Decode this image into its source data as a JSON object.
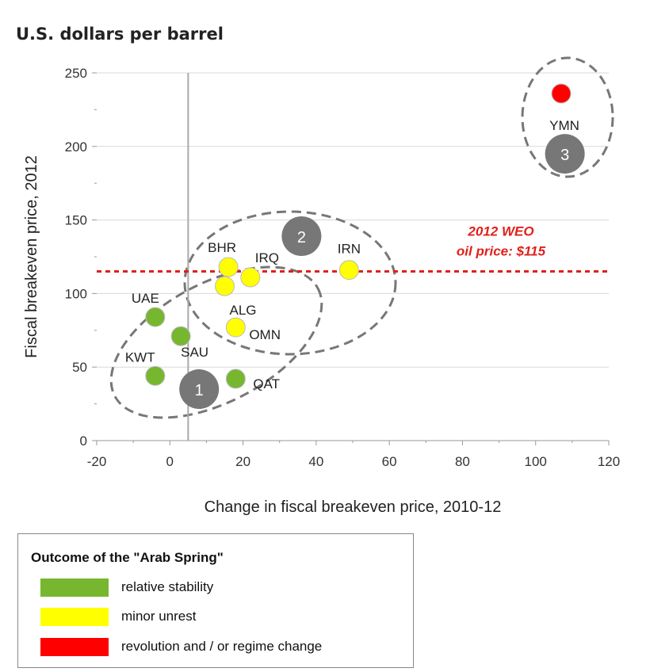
{
  "chart_data": {
    "type": "scatter",
    "title": "U.S. dollars per barrel",
    "xlabel": "Change in fiscal breakeven price, 2010-12",
    "ylabel": "Fiscal breakeven price, 2012",
    "xlim": [
      -20,
      120
    ],
    "ylim": [
      0,
      250
    ],
    "xticks": [
      "-20",
      "0",
      "20",
      "40",
      "60",
      "80",
      "100",
      "120"
    ],
    "yticks": [
      "0",
      "50",
      "100",
      "150",
      "200",
      "250"
    ],
    "grid": "horizontal",
    "vertical_reference_x": 5,
    "reference_line": {
      "y": 115,
      "label_line1": "2012 WEO",
      "label_line2": "oil price: $115",
      "color": "#e0201a"
    },
    "points": [
      {
        "label": "UAE",
        "x": -4,
        "y": 84,
        "outcome": "stability"
      },
      {
        "label": "SAU",
        "x": 3,
        "y": 71,
        "outcome": "stability"
      },
      {
        "label": "KWT",
        "x": -4,
        "y": 44,
        "outcome": "stability"
      },
      {
        "label": "QAT",
        "x": 18,
        "y": 42,
        "outcome": "stability"
      },
      {
        "label": "BHR",
        "x": 16,
        "y": 118,
        "outcome": "unrest"
      },
      {
        "label": "IRQ",
        "x": 22,
        "y": 111,
        "outcome": "unrest"
      },
      {
        "label": "ALG",
        "x": 15,
        "y": 105,
        "outcome": "unrest"
      },
      {
        "label": "OMN",
        "x": 18,
        "y": 77,
        "outcome": "unrest"
      },
      {
        "label": "IRN",
        "x": 49,
        "y": 116,
        "outcome": "unrest"
      },
      {
        "label": "YMN",
        "x": 107,
        "y": 236,
        "outcome": "revolution"
      }
    ],
    "clusters": [
      {
        "number": "1",
        "x": 8,
        "y": 35
      },
      {
        "number": "2",
        "x": 36,
        "y": 139
      },
      {
        "number": "3",
        "x": 108,
        "y": 195
      }
    ],
    "colors": {
      "stability": "#77b72f",
      "unrest": "#ffff00",
      "revolution": "#ff0000",
      "cluster": "#777777",
      "ellipse": "#777777"
    },
    "legend": {
      "title": "Outcome of the \"Arab Spring\"",
      "placement": "bottom-left",
      "items": [
        {
          "label": "relative stability",
          "color": "#77b72f"
        },
        {
          "label": "minor unrest",
          "color": "#ffff00"
        },
        {
          "label": "revolution  and / or  regime change",
          "color": "#ff0000"
        }
      ]
    }
  }
}
